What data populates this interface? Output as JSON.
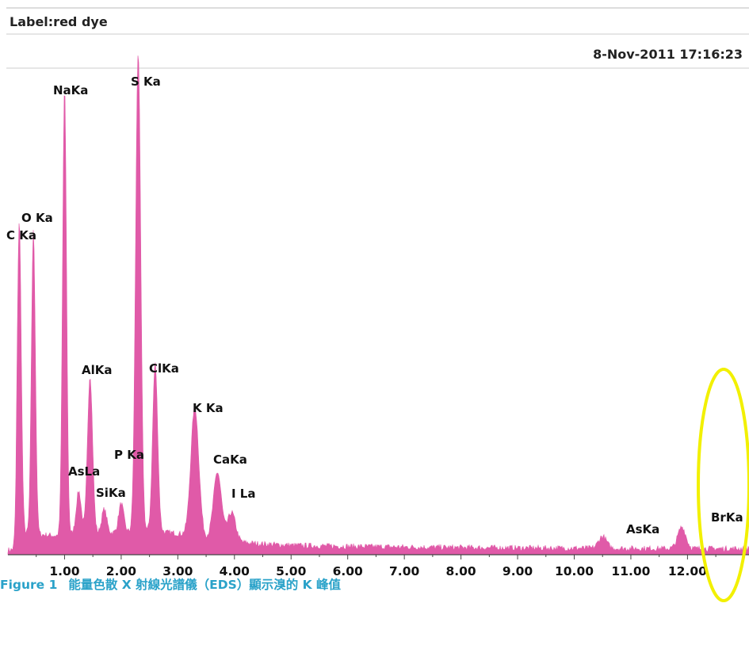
{
  "header": {
    "label": "Label:red dye",
    "timestamp": "8-Nov-2011 17:16:23"
  },
  "caption": {
    "figure_number": "Figure 1",
    "text": "能量色散 X 射線光譜儀（EDS）顯示溴的 K  峰值"
  },
  "colors": {
    "spectrum": "#e05aa8",
    "highlight_ellipse": "#f2f000",
    "caption": "#2aa2c9"
  },
  "chart_data": {
    "type": "area",
    "title": "",
    "xlabel": "",
    "ylabel": "",
    "xlim": [
      0,
      12.4
    ],
    "x_ticks": [
      "1.00",
      "2.00",
      "3.00",
      "4.00",
      "5.00",
      "6.00",
      "7.00",
      "8.00",
      "9.00",
      "10.00",
      "11.00",
      "12.00"
    ],
    "y_axis_shown": false,
    "grid": false,
    "peaks": [
      {
        "label": "C Ka",
        "energy": 0.2,
        "relative_intensity": 0.65
      },
      {
        "label": "O Ka",
        "energy": 0.45,
        "relative_intensity": 0.63
      },
      {
        "label": "NaKa",
        "energy": 1.0,
        "relative_intensity": 0.93
      },
      {
        "label": "AlKa",
        "energy": 1.45,
        "relative_intensity": 0.33
      },
      {
        "label": "AsLa",
        "energy": 1.25,
        "relative_intensity": 0.09
      },
      {
        "label": "SiKa",
        "energy": 1.7,
        "relative_intensity": 0.05
      },
      {
        "label": "P Ka",
        "energy": 2.0,
        "relative_intensity": 0.06
      },
      {
        "label": "S Ka",
        "energy": 2.3,
        "relative_intensity": 1.0
      },
      {
        "label": "ClKa",
        "energy": 2.6,
        "relative_intensity": 0.35
      },
      {
        "label": "K Ka",
        "energy": 3.3,
        "relative_intensity": 0.27
      },
      {
        "label": "CaKa",
        "energy": 3.7,
        "relative_intensity": 0.14
      },
      {
        "label": "I La",
        "energy": 3.95,
        "relative_intensity": 0.06
      },
      {
        "label": "AsKa",
        "energy": 10.5,
        "relative_intensity": 0.025
      },
      {
        "label": "BrKa",
        "energy": 11.9,
        "relative_intensity": 0.045
      }
    ]
  }
}
